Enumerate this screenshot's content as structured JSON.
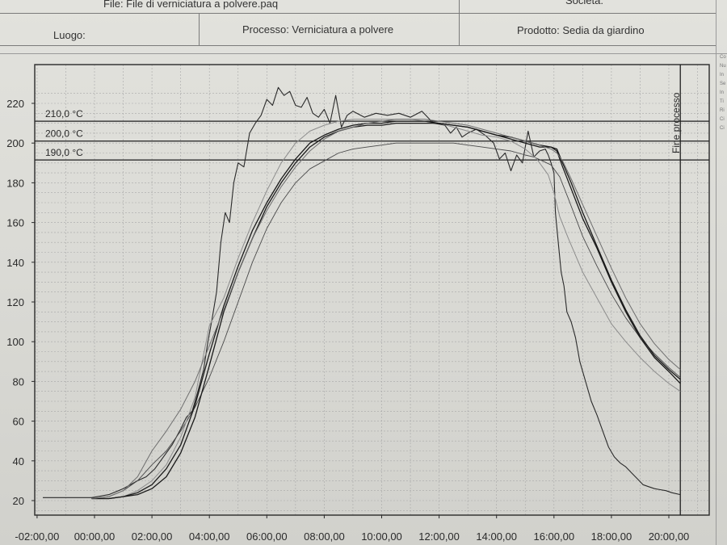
{
  "header": {
    "file_label": "File: File di verniciatura a polvere.paq",
    "societa_label": "Società:",
    "luogo_label": "Luogo:",
    "processo_label": "Processo: Verniciatura a polvere",
    "prodotto_label": "Prodotto: Sedia da giardino"
  },
  "side_fragments": [
    "Co",
    "Nu",
    "In",
    "Se",
    "In",
    "Ti",
    "Ri",
    "Ci",
    "Ci"
  ],
  "chart_data": {
    "type": "line",
    "xlabel": "",
    "ylabel": "",
    "x_unit": "hours",
    "xlim": [
      -2.2,
      21
    ],
    "ylim": [
      15,
      225
    ],
    "x_ticks": [
      -2,
      0,
      2,
      4,
      6,
      8,
      10,
      12,
      14,
      16,
      18,
      20
    ],
    "x_tick_labels": [
      "-02:00,00",
      "00:00,00",
      "02:00,00",
      "04:00,00",
      "06:00,00",
      "08:00,00",
      "10:00,00",
      "12:00,00",
      "14:00,00",
      "16:00,00",
      "18:00,00",
      "20:00,00"
    ],
    "y_ticks": [
      20,
      40,
      60,
      80,
      100,
      120,
      140,
      160,
      180,
      200,
      220
    ],
    "y_tick_labels": [
      "20",
      "40",
      "60",
      "80",
      "100",
      "120",
      "140",
      "160",
      "180",
      "200",
      "220"
    ],
    "grid": true,
    "reference_lines": [
      {
        "label": "210,0 °C",
        "value": 211
      },
      {
        "label": "200,0 °C",
        "value": 201
      },
      {
        "label": "190,0 °C",
        "value": 191.5
      }
    ],
    "end_marker": {
      "label": "Fine processo",
      "x": 20.4
    },
    "series": [
      {
        "color": "#2a2a2a",
        "width": 1.1,
        "x": [
          -1.8,
          -0.1,
          0.5,
          1.0,
          1.5,
          1.8,
          2.1,
          2.4,
          2.7,
          3.0,
          3.2,
          3.4,
          3.6,
          3.8,
          3.95,
          4.1,
          4.25,
          4.4,
          4.55,
          4.7,
          4.85,
          5.0,
          5.2,
          5.4,
          5.6,
          5.8,
          6.0,
          6.2,
          6.4,
          6.6,
          6.8,
          7.0,
          7.2,
          7.4,
          7.6,
          7.8,
          8.0,
          8.2,
          8.4,
          8.6,
          8.8,
          9.0,
          9.4,
          9.8,
          10.2,
          10.6,
          11.0,
          11.4,
          11.8,
          12.2,
          12.4,
          12.6,
          12.8,
          13.0,
          13.3,
          13.6,
          13.9,
          14.1,
          14.3,
          14.5,
          14.7,
          14.9,
          15.1,
          15.3,
          15.5,
          15.7,
          15.8,
          15.9,
          16.0,
          16.05,
          16.15,
          16.25,
          16.35,
          16.45,
          16.6,
          16.75,
          16.9,
          17.1,
          17.3,
          17.5,
          17.7,
          17.9,
          18.1,
          18.3,
          18.5,
          18.7,
          18.9,
          19.1,
          19.3,
          19.5,
          19.7,
          19.9,
          20.1,
          20.4
        ],
        "y": [
          21.5,
          21.5,
          23,
          26,
          30,
          32,
          36,
          42,
          48,
          56,
          62,
          65,
          75,
          86,
          100,
          112,
          125,
          150,
          165,
          160,
          180,
          190,
          188,
          205,
          210,
          214,
          222,
          219,
          228,
          224,
          226,
          219,
          218,
          223,
          215,
          213,
          217,
          210,
          224,
          208,
          214,
          216,
          213,
          215,
          214,
          215,
          213,
          216,
          210,
          209,
          205,
          208,
          203,
          205,
          207,
          204,
          200,
          192,
          195,
          186,
          194,
          190,
          206,
          193,
          196,
          197,
          194,
          190,
          185,
          165,
          150,
          135,
          128,
          115,
          110,
          102,
          90,
          80,
          70,
          63,
          55,
          47,
          42,
          39,
          37,
          34,
          31,
          28,
          27,
          26,
          25.5,
          25,
          24,
          23
        ]
      },
      {
        "color": "#4a4a4a",
        "width": 0.9,
        "x": [
          -0.1,
          0.5,
          1.0,
          1.5,
          2.0,
          2.5,
          3.0,
          3.5,
          4.0,
          4.5,
          5.0,
          5.5,
          6.0,
          6.5,
          7.0,
          7.5,
          8.0,
          8.5,
          9.0,
          9.5,
          10.0,
          10.5,
          11.0,
          11.5,
          12.0,
          12.5,
          13.0,
          13.5,
          14.0,
          14.5,
          15.0,
          15.3,
          15.6,
          15.9,
          16.2,
          16.5,
          17.0,
          17.5,
          18.0,
          18.5,
          19.0,
          19.5,
          20.0,
          20.4
        ],
        "y": [
          21,
          22,
          25,
          30,
          38,
          45,
          55,
          67,
          82,
          100,
          120,
          140,
          157,
          170,
          180,
          187,
          191,
          195,
          197,
          198,
          199,
          200,
          200,
          200,
          200,
          200,
          199,
          198,
          197,
          196,
          194,
          193,
          191,
          189,
          183,
          172,
          153,
          138,
          124,
          112,
          102,
          94,
          87,
          82
        ]
      },
      {
        "color": "#8c8c8c",
        "width": 1.0,
        "x": [
          -0.1,
          0.5,
          1.0,
          1.5,
          2.0,
          2.5,
          3.0,
          3.5,
          4.0,
          4.5,
          5.0,
          5.5,
          6.0,
          6.5,
          7.0,
          7.5,
          8.0,
          8.5,
          9.0,
          9.5,
          10.0,
          10.5,
          11.0,
          11.5,
          12.0,
          12.5,
          13.0,
          13.5,
          14.0,
          14.5,
          15.0,
          15.4,
          15.8,
          16.0,
          16.2,
          16.5,
          17.0,
          17.5,
          18.0,
          18.5,
          19.0,
          19.5,
          20.0,
          20.4
        ],
        "y": [
          21,
          21,
          22,
          25,
          30,
          38,
          52,
          72,
          108,
          122,
          142,
          160,
          176,
          190,
          200,
          206,
          209,
          211,
          212,
          212,
          212,
          212,
          212,
          211,
          210,
          208,
          206,
          204,
          203,
          201,
          197,
          192,
          184,
          175,
          163,
          152,
          135,
          122,
          109,
          100,
          92,
          85,
          79,
          75
        ]
      },
      {
        "color": "#1a1a1a",
        "width": 1.3,
        "x": [
          -0.1,
          0.5,
          1.0,
          1.5,
          2.0,
          2.5,
          3.0,
          3.5,
          4.0,
          4.5,
          5.0,
          5.5,
          6.0,
          6.5,
          7.0,
          7.5,
          8.0,
          8.5,
          9.0,
          9.5,
          10.0,
          10.5,
          11.0,
          11.5,
          12.0,
          12.5,
          13.0,
          13.5,
          14.0,
          14.5,
          15.0,
          15.5,
          15.9,
          16.1,
          16.3,
          16.6,
          17.0,
          17.5,
          18.0,
          18.5,
          19.0,
          19.5,
          20.0,
          20.4
        ],
        "y": [
          21,
          21,
          22,
          24,
          28,
          36,
          48,
          68,
          94,
          118,
          138,
          156,
          170,
          182,
          192,
          200,
          204,
          207,
          209,
          210,
          210,
          211,
          211,
          211,
          210,
          209,
          208,
          206,
          204,
          202,
          200,
          198,
          198,
          196,
          188,
          177,
          162,
          147,
          130,
          115,
          102,
          92,
          85,
          79
        ]
      },
      {
        "color": "#1a1a1a",
        "width": 1.3,
        "x": [
          -0.1,
          0.5,
          1.0,
          1.5,
          2.0,
          2.5,
          3.0,
          3.5,
          4.0,
          4.5,
          5.0,
          5.5,
          6.0,
          6.5,
          7.0,
          7.5,
          8.0,
          8.5,
          9.0,
          9.5,
          10.0,
          10.5,
          11.0,
          11.5,
          12.0,
          12.5,
          13.0,
          13.5,
          14.0,
          14.5,
          15.0,
          15.5,
          15.9,
          16.1,
          16.3,
          16.6,
          17.0,
          17.5,
          18.0,
          18.5,
          19.0,
          19.5,
          20.0,
          20.4
        ],
        "y": [
          21,
          21,
          22,
          23,
          26,
          32,
          44,
          62,
          88,
          115,
          135,
          152,
          168,
          180,
          190,
          198,
          203,
          206,
          208,
          209,
          209,
          210,
          210,
          210,
          210,
          209,
          208,
          206,
          204,
          203,
          201,
          199,
          198,
          197,
          190,
          180,
          165,
          148,
          131,
          116,
          103,
          93,
          86,
          81
        ]
      },
      {
        "color": "#6e6e6e",
        "width": 1.0,
        "x": [
          -0.1,
          0.5,
          1.0,
          1.5,
          2.0,
          2.5,
          3.0,
          3.5,
          4.0,
          4.5,
          5.0,
          5.5,
          6.0,
          6.5,
          7.0,
          7.5,
          8.0,
          8.5,
          9.0,
          9.5,
          10.0,
          10.5,
          11.0,
          11.5,
          12.0,
          12.5,
          13.0,
          13.5,
          14.0,
          14.5,
          15.0,
          15.5,
          15.9,
          16.1,
          16.3,
          16.6,
          17.0,
          17.5,
          18.0,
          18.5,
          19.0,
          19.5,
          20.0,
          20.4
        ],
        "y": [
          21,
          22,
          25,
          32,
          45,
          55,
          66,
          80,
          98,
          116,
          135,
          152,
          166,
          178,
          188,
          196,
          202,
          206,
          208,
          210,
          211,
          212,
          212,
          212,
          211,
          210,
          209,
          207,
          205,
          203,
          201,
          199,
          197,
          195,
          191,
          182,
          169,
          153,
          137,
          122,
          109,
          99,
          91,
          86
        ]
      }
    ]
  }
}
